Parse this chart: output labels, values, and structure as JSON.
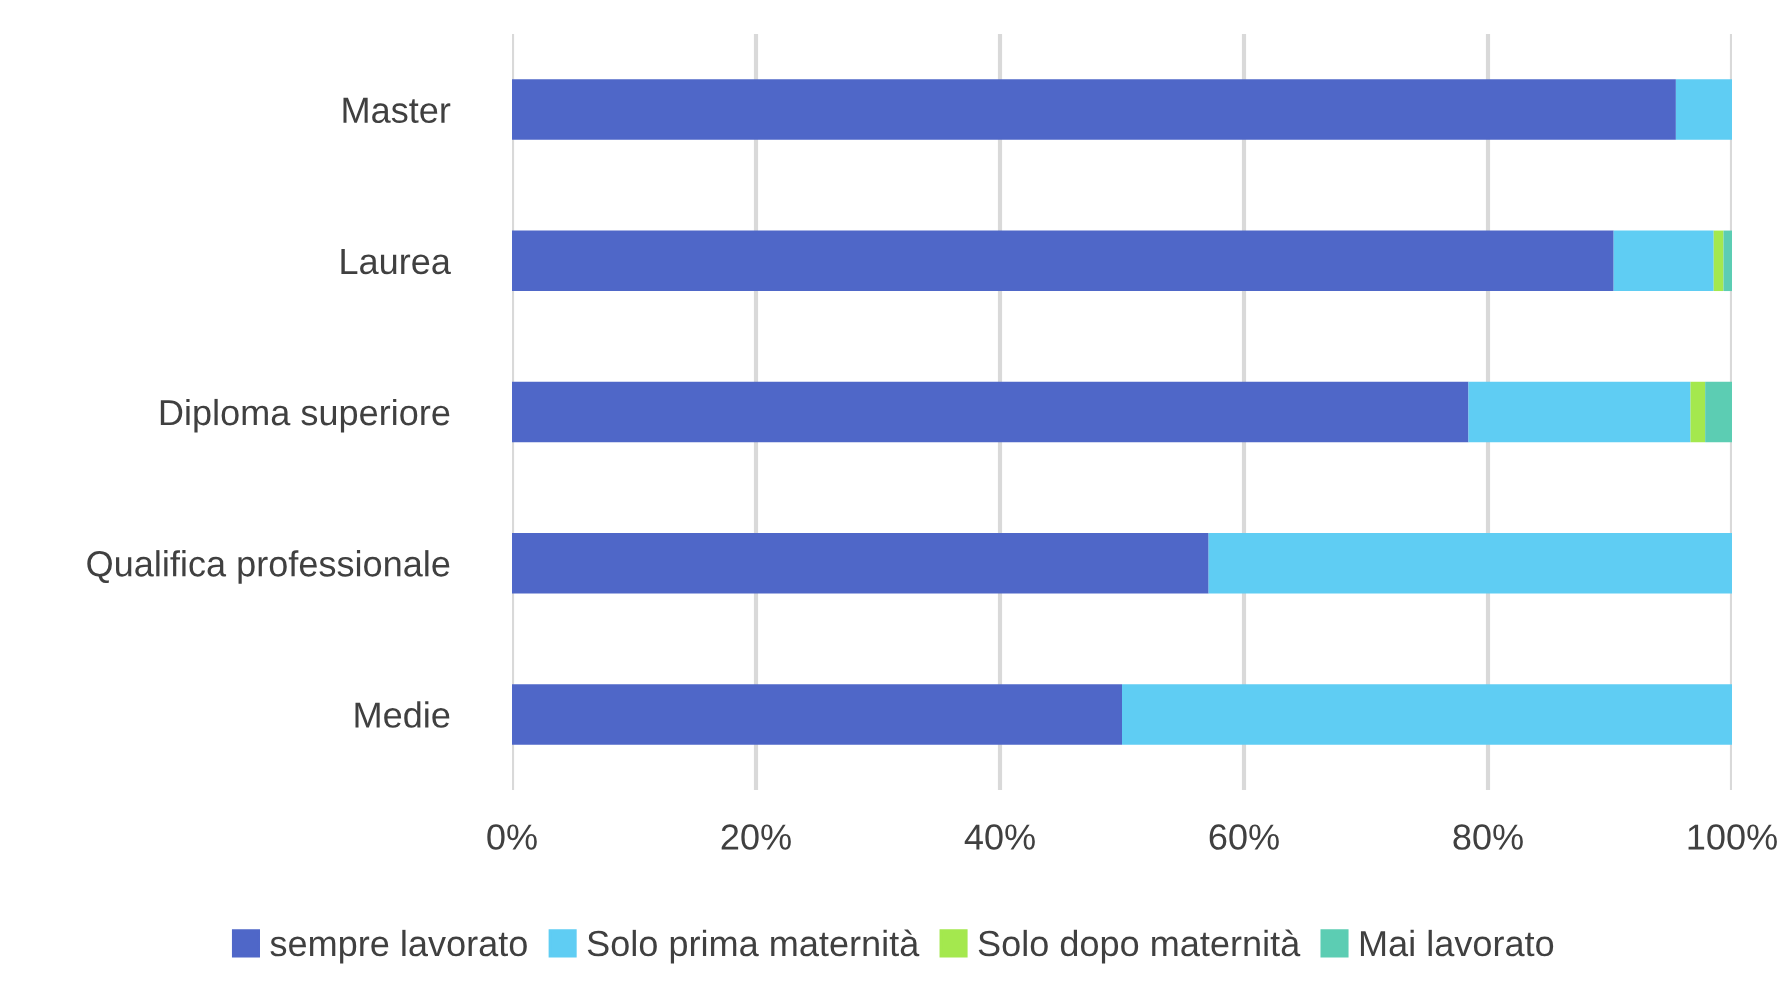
{
  "chart_data": {
    "type": "bar",
    "orientation": "horizontal",
    "stacked": true,
    "categories": [
      "Master",
      "Laurea",
      "Diploma superiore",
      "Qualifica professionale",
      "Medie"
    ],
    "series": [
      {
        "name": "sempre lavorato",
        "color": "#4f67c8",
        "values": [
          95.4,
          90.3,
          78.4,
          57.1,
          50
        ]
      },
      {
        "name": "Solo prima maternità",
        "color": "#5fcdf3",
        "values": [
          4.6,
          8.2,
          18.2,
          42.9,
          50
        ]
      },
      {
        "name": "Solo dopo maternità",
        "color": "#a4e84e",
        "values": [
          0,
          0.8,
          1.2,
          0,
          0
        ]
      },
      {
        "name": "Mai lavorato",
        "color": "#5ccdb3",
        "values": [
          0,
          0.7,
          2.2,
          0,
          0
        ]
      }
    ],
    "xlim": [
      0,
      100
    ],
    "xticks": [
      {
        "value": 0,
        "label": "0%"
      },
      {
        "value": 20,
        "label": "20%"
      },
      {
        "value": 40,
        "label": "40%"
      },
      {
        "value": 60,
        "label": "60%"
      },
      {
        "value": 80,
        "label": "80%"
      },
      {
        "value": 100,
        "label": "100%"
      }
    ],
    "grid": "x",
    "legend": "bottom"
  }
}
